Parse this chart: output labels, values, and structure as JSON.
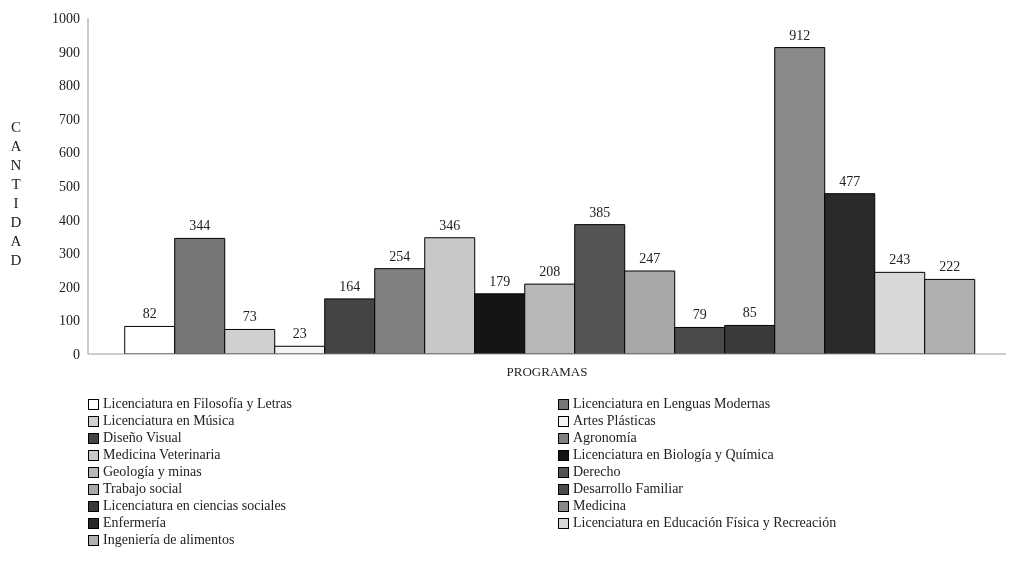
{
  "chart_data": {
    "type": "bar",
    "xlabel": "PROGRAMAS",
    "ylabel": "CANTIDAD",
    "categories": [
      null
    ],
    "ylim": [
      0,
      1000
    ],
    "yticks": [
      0,
      100,
      200,
      300,
      400,
      500,
      600,
      700,
      800,
      900,
      1000
    ],
    "grid": false,
    "legend": "bottom",
    "data_labels": true,
    "series": [
      {
        "name": "Licenciatura en Filosofía y Letras",
        "color": "#ffffff",
        "values": [
          82
        ]
      },
      {
        "name": "Licenciatura en Lenguas Modernas",
        "color": "#777777",
        "values": [
          344
        ]
      },
      {
        "name": "Licenciatura en Música",
        "color": "#d0d0d0",
        "values": [
          73
        ]
      },
      {
        "name": "Artes Plásticas",
        "color": "#f4f4f4",
        "values": [
          23
        ]
      },
      {
        "name": "Diseño Visual",
        "color": "#444444",
        "values": [
          164
        ]
      },
      {
        "name": "Agronomía",
        "color": "#808080",
        "values": [
          254
        ]
      },
      {
        "name": "Medicina Veterinaria",
        "color": "#c8c8c8",
        "values": [
          346
        ]
      },
      {
        "name": "Licenciatura en Biología y Química",
        "color": "#151515",
        "values": [
          179
        ]
      },
      {
        "name": "Geología y minas",
        "color": "#b8b8b8",
        "values": [
          208
        ]
      },
      {
        "name": "Derecho",
        "color": "#555555",
        "values": [
          385
        ]
      },
      {
        "name": "Trabajo social",
        "color": "#a8a8a8",
        "values": [
          247
        ]
      },
      {
        "name": "Desarrollo Familiar",
        "color": "#4a4a4a",
        "values": [
          79
        ]
      },
      {
        "name": "Licenciatura en ciencias sociales",
        "color": "#3a3a3a",
        "values": [
          85
        ]
      },
      {
        "name": "Medicina",
        "color": "#8a8a8a",
        "values": [
          912
        ]
      },
      {
        "name": "Enfermería",
        "color": "#2a2a2a",
        "values": [
          477
        ]
      },
      {
        "name": "Licenciatura en Educación Física y Recreación",
        "color": "#d8d8d8",
        "values": [
          243
        ]
      },
      {
        "name": "Ingeniería de alimentos",
        "color": "#b0b0b0",
        "values": [
          222
        ]
      }
    ]
  }
}
